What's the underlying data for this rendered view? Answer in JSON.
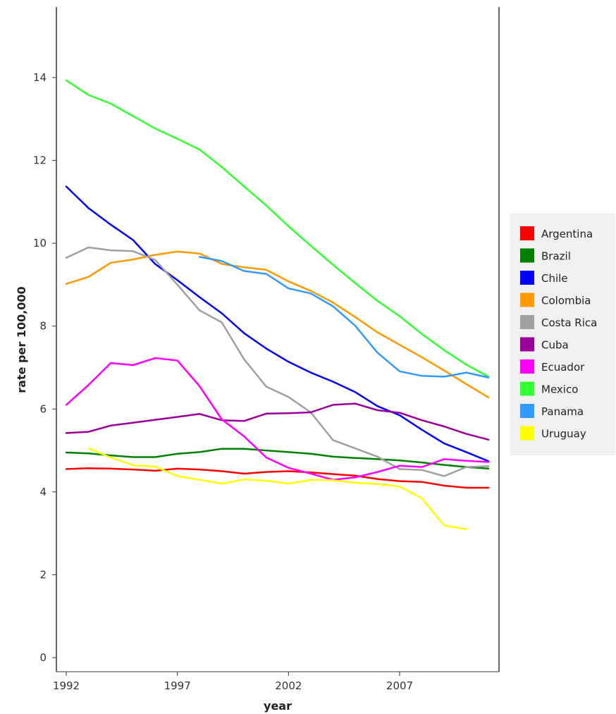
{
  "chart_data": {
    "type": "line",
    "xlabel": "year",
    "ylabel": "rate per 100,000",
    "xlim": [
      1992,
      2011.5
    ],
    "ylim": [
      0,
      15.5
    ],
    "x_ticks": [
      1992,
      1997,
      2002,
      2007
    ],
    "y_ticks": [
      0,
      2,
      4,
      6,
      8,
      10,
      12,
      14
    ],
    "grid": false,
    "legend_position": "right",
    "series": [
      {
        "name": "Argentina",
        "color": "#ff0000",
        "x": [
          1992,
          1993,
          1994,
          1995,
          1996,
          1997,
          1998,
          1999,
          2000,
          2001,
          2002,
          2003,
          2004,
          2005,
          2006,
          2007,
          2008,
          2009,
          2010,
          2011
        ],
        "y": [
          4.55,
          4.57,
          4.56,
          4.54,
          4.51,
          4.56,
          4.54,
          4.5,
          4.44,
          4.48,
          4.5,
          4.47,
          4.43,
          4.39,
          4.31,
          4.26,
          4.24,
          4.15,
          4.1,
          4.1
        ]
      },
      {
        "name": "Brazil",
        "color": "#008000",
        "x": [
          1992,
          1993,
          1994,
          1995,
          1996,
          1997,
          1998,
          1999,
          2000,
          2001,
          2002,
          2003,
          2004,
          2005,
          2006,
          2007,
          2008,
          2009,
          2010,
          2011
        ],
        "y": [
          4.95,
          4.93,
          4.88,
          4.84,
          4.84,
          4.92,
          4.96,
          5.04,
          5.04,
          5.0,
          4.96,
          4.92,
          4.85,
          4.82,
          4.79,
          4.76,
          4.71,
          4.65,
          4.6,
          4.56
        ]
      },
      {
        "name": "Chile",
        "color": "#0000ff",
        "x": [
          1992,
          1993,
          1994,
          1995,
          1996,
          1997,
          1998,
          1999,
          2000,
          2001,
          2002,
          2003,
          2004,
          2005,
          2006,
          2007,
          2008,
          2009,
          2010,
          2011
        ],
        "y": [
          11.37,
          10.85,
          10.45,
          10.08,
          9.5,
          9.11,
          8.7,
          8.31,
          7.83,
          7.46,
          7.14,
          6.88,
          6.66,
          6.41,
          6.07,
          5.85,
          5.5,
          5.17,
          4.96,
          4.74
        ]
      },
      {
        "name": "Colombia",
        "color": "#ff9900",
        "x": [
          1992,
          1993,
          1994,
          1995,
          1996,
          1997,
          1998,
          1999,
          2000,
          2001,
          2002,
          2003,
          2004,
          2005,
          2006,
          2007,
          2008,
          2009,
          2010,
          2011
        ],
        "y": [
          9.02,
          9.19,
          9.53,
          9.61,
          9.72,
          9.8,
          9.75,
          9.5,
          9.42,
          9.36,
          9.08,
          8.85,
          8.57,
          8.22,
          7.85,
          7.55,
          7.25,
          6.93,
          6.6,
          6.28
        ]
      },
      {
        "name": "Costa Rica",
        "color": "#a0a0a0",
        "x": [
          1992,
          1993,
          1994,
          1995,
          1996,
          1997,
          1998,
          1999,
          2000,
          2001,
          2002,
          2003,
          2004,
          2005,
          2006,
          2007,
          2008,
          2009,
          2010,
          2011
        ],
        "y": [
          9.65,
          9.9,
          9.83,
          9.81,
          9.6,
          9.0,
          8.38,
          8.09,
          7.2,
          6.54,
          6.29,
          5.92,
          5.25,
          5.05,
          4.85,
          4.55,
          4.53,
          4.38,
          4.6,
          4.62
        ]
      },
      {
        "name": "Cuba",
        "color": "#990099",
        "x": [
          1992,
          1993,
          1994,
          1995,
          1996,
          1997,
          1998,
          1999,
          2000,
          2001,
          2002,
          2003,
          2004,
          2005,
          2006,
          2007,
          2008,
          2009,
          2010,
          2011
        ],
        "y": [
          5.42,
          5.45,
          5.6,
          5.67,
          5.74,
          5.81,
          5.88,
          5.73,
          5.71,
          5.89,
          5.9,
          5.92,
          6.1,
          6.13,
          5.97,
          5.91,
          5.73,
          5.58,
          5.4,
          5.26
        ]
      },
      {
        "name": "Ecuador",
        "color": "#ff00ff",
        "x": [
          1992,
          1993,
          1994,
          1995,
          1996,
          1997,
          1998,
          1999,
          2000,
          2001,
          2002,
          2003,
          2004,
          2005,
          2006,
          2007,
          2008,
          2009,
          2010,
          2011
        ],
        "y": [
          6.1,
          6.58,
          7.11,
          7.06,
          7.23,
          7.17,
          6.55,
          5.75,
          5.34,
          4.83,
          4.58,
          4.44,
          4.29,
          4.35,
          4.48,
          4.63,
          4.6,
          4.79,
          4.75,
          4.72
        ]
      },
      {
        "name": "Mexico",
        "color": "#33ff33",
        "x": [
          1992,
          1993,
          1994,
          1995,
          1996,
          1997,
          1998,
          1999,
          2000,
          2001,
          2002,
          2003,
          2004,
          2005,
          2006,
          2007,
          2008,
          2009,
          2010,
          2011
        ],
        "y": [
          13.93,
          13.58,
          13.37,
          13.07,
          12.77,
          12.52,
          12.26,
          11.84,
          11.37,
          10.91,
          10.41,
          9.94,
          9.48,
          9.04,
          8.61,
          8.24,
          7.81,
          7.42,
          7.07,
          6.78
        ]
      },
      {
        "name": "Panama",
        "color": "#3399ff",
        "x": [
          1998,
          1999,
          2000,
          2001,
          2002,
          2003,
          2004,
          2005,
          2006,
          2007,
          2008,
          2009,
          2010,
          2011
        ],
        "y": [
          9.67,
          9.57,
          9.33,
          9.26,
          8.91,
          8.79,
          8.48,
          8.01,
          7.36,
          6.91,
          6.8,
          6.78,
          6.88,
          6.76
        ]
      },
      {
        "name": "Uruguay",
        "color": "#ffff00",
        "x": [
          1993,
          1994,
          1995,
          1996,
          1997,
          1998,
          1999,
          2000,
          2001,
          2002,
          2003,
          2004,
          2005,
          2006,
          2007,
          2008,
          2009,
          2010
        ],
        "y": [
          5.05,
          4.83,
          4.64,
          4.61,
          4.38,
          4.29,
          4.2,
          4.3,
          4.27,
          4.2,
          4.29,
          4.28,
          4.22,
          4.19,
          4.13,
          3.84,
          3.19,
          3.1
        ]
      }
    ]
  }
}
